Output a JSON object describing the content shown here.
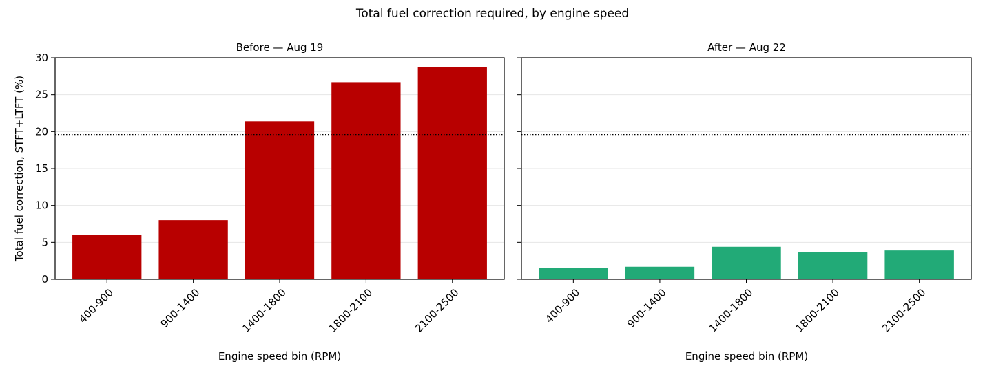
{
  "figure": {
    "title": "Total fuel correction required, by engine speed"
  },
  "chart_data": [
    {
      "type": "bar",
      "title": "Before — Aug 19",
      "xlabel": "Engine speed bin (RPM)",
      "ylabel": "Total fuel correction, STFT+LTFT (%)",
      "categories": [
        "400-900",
        "900-1400",
        "1400-1800",
        "1800-2100",
        "2100-2500"
      ],
      "values": [
        6.0,
        8.0,
        21.4,
        26.7,
        28.7
      ],
      "ylim": [
        0,
        30
      ],
      "yticks": [
        0,
        5,
        10,
        15,
        20,
        25,
        30
      ],
      "reference_line": {
        "y": 19.6,
        "style": "dotted"
      },
      "grid": "y",
      "color": "#b80000"
    },
    {
      "type": "bar",
      "title": "After — Aug 22",
      "xlabel": "Engine speed bin (RPM)",
      "ylabel": "",
      "categories": [
        "400-900",
        "900-1400",
        "1400-1800",
        "1800-2100",
        "2100-2500"
      ],
      "values": [
        1.5,
        1.7,
        4.4,
        3.7,
        3.9
      ],
      "ylim": [
        0,
        30
      ],
      "yticks": [
        0,
        5,
        10,
        15,
        20,
        25,
        30
      ],
      "reference_line": {
        "y": 19.6,
        "style": "dotted"
      },
      "grid": "y",
      "color": "#22aa77"
    }
  ]
}
